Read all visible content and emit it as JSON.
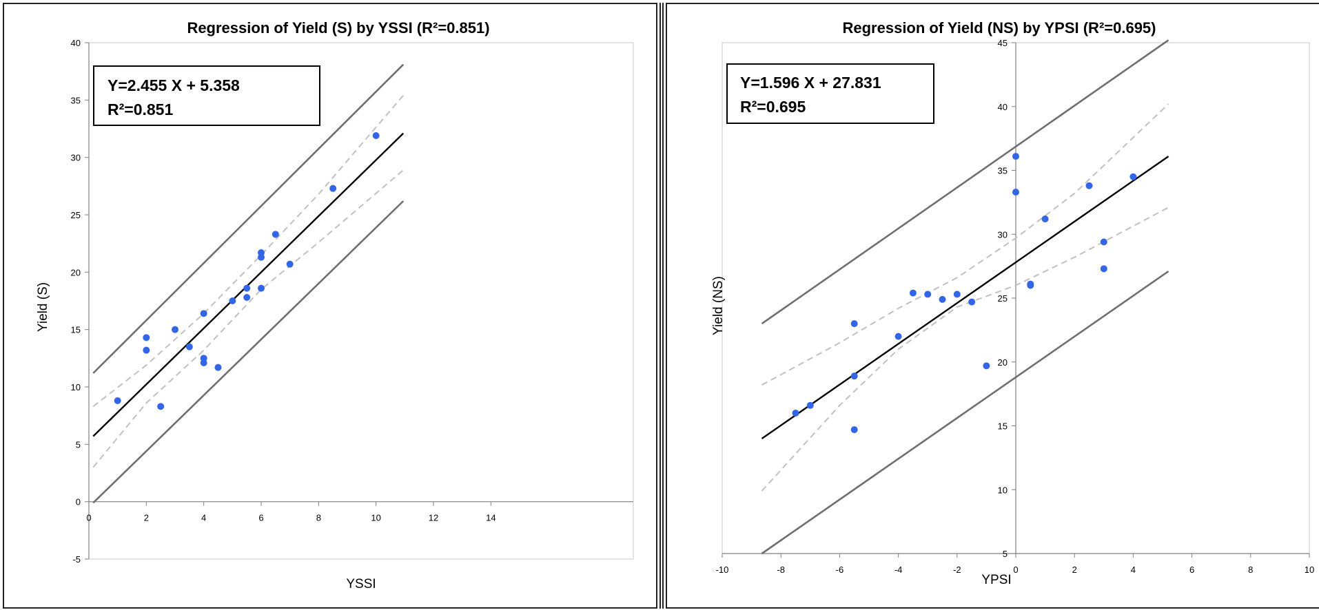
{
  "chart_data": [
    {
      "type": "scatter",
      "title": "Regression of Yield (S) by YSSI (R²=0.851)",
      "xlabel": "YSSI",
      "ylabel": "Yield (S)",
      "xlim": [
        0,
        15
      ],
      "ylim": [
        -5,
        40
      ],
      "xticks": [
        "0",
        "2",
        "4",
        "6",
        "8",
        "10",
        "12",
        "14"
      ],
      "yticks": [
        "-5",
        "0",
        "5",
        "10",
        "15",
        "20",
        "25",
        "30",
        "35",
        "40"
      ],
      "equation": "Y=2.455 X + 5.358",
      "r2_label": "R²=0.851",
      "points": [
        [
          1.0,
          8.8
        ],
        [
          2.0,
          14.3
        ],
        [
          2.0,
          13.2
        ],
        [
          2.5,
          8.3
        ],
        [
          3.0,
          15.0
        ],
        [
          3.5,
          13.5
        ],
        [
          4.0,
          16.4
        ],
        [
          4.0,
          12.5
        ],
        [
          4.0,
          12.1
        ],
        [
          4.5,
          11.7
        ],
        [
          5.0,
          17.5
        ],
        [
          5.5,
          18.6
        ],
        [
          5.5,
          17.8
        ],
        [
          6.0,
          21.7
        ],
        [
          6.0,
          21.3
        ],
        [
          6.0,
          18.6
        ],
        [
          6.5,
          23.3
        ],
        [
          7.0,
          20.7
        ],
        [
          8.5,
          27.3
        ],
        [
          10.0,
          31.9
        ]
      ],
      "fit_line": {
        "x": [
          0.15,
          10.95
        ],
        "y": [
          5.7,
          32.1
        ]
      },
      "conf_upper": {
        "x": [
          0.15,
          2,
          4,
          6,
          8,
          10.95
        ],
        "y": [
          8.3,
          11.9,
          16.4,
          21.5,
          26.8,
          35.4
        ]
      },
      "conf_lower": {
        "x": [
          0.15,
          2,
          4,
          6,
          8,
          10.95
        ],
        "y": [
          3.0,
          8.6,
          13.2,
          18.5,
          22.6,
          28.9
        ]
      },
      "pred_upper": {
        "x": [
          0.15,
          10.95
        ],
        "y": [
          11.2,
          38.1
        ]
      },
      "pred_lower": {
        "x": [
          0.15,
          10.95
        ],
        "y": [
          -0.1,
          26.2
        ]
      },
      "grid": false,
      "legend": "none",
      "colors": {
        "points": "#3366e6",
        "fit": "#000000",
        "prediction": "#6e6e6e",
        "confidence": "#c0c0c0",
        "plot_border": "#c8c8c8",
        "axis": "#7f7f7f"
      }
    },
    {
      "type": "scatter",
      "title": "Regression of Yield (NS) by YPSI (R²=0.695)",
      "xlabel": "YPSI",
      "ylabel": "Yield (NS)",
      "xlim": [
        -10,
        10
      ],
      "ylim": [
        5,
        45
      ],
      "xticks": [
        "-10",
        "-8",
        "-6",
        "-4",
        "-2",
        "0",
        "2",
        "4",
        "6",
        "8",
        "10"
      ],
      "yticks": [
        "5",
        "10",
        "15",
        "20",
        "25",
        "30",
        "35",
        "40",
        "45"
      ],
      "equation": "Y=1.596 X  +  27.831",
      "r2_label": "R²=0.695",
      "points": [
        [
          -7.5,
          16.0
        ],
        [
          -7.0,
          16.6
        ],
        [
          -5.5,
          23.0
        ],
        [
          -5.5,
          18.9
        ],
        [
          -5.5,
          14.7
        ],
        [
          -4.0,
          22.0
        ],
        [
          -3.5,
          25.4
        ],
        [
          -3.0,
          25.3
        ],
        [
          -2.5,
          24.9
        ],
        [
          -2.0,
          25.3
        ],
        [
          -1.5,
          24.7
        ],
        [
          -1.0,
          19.7
        ],
        [
          0.0,
          36.1
        ],
        [
          0.0,
          33.3
        ],
        [
          0.5,
          26.1
        ],
        [
          0.5,
          26.0
        ],
        [
          1.0,
          31.2
        ],
        [
          2.5,
          33.8
        ],
        [
          3.0,
          29.4
        ],
        [
          3.0,
          27.3
        ],
        [
          4.0,
          34.5
        ]
      ],
      "fit_line": {
        "x": [
          -8.65,
          5.2
        ],
        "y": [
          14.0,
          36.1
        ]
      },
      "conf_upper": {
        "x": [
          -8.65,
          -6,
          -4,
          -2,
          0,
          2,
          5.2
        ],
        "y": [
          18.2,
          21.5,
          24.2,
          26.6,
          29.7,
          33.2,
          40.2
        ]
      },
      "conf_lower": {
        "x": [
          -8.65,
          -6,
          -4,
          -2,
          0,
          2,
          5.2
        ],
        "y": [
          9.9,
          16.6,
          21.0,
          24.3,
          26.0,
          28.2,
          32.1
        ]
      },
      "pred_upper": {
        "x": [
          -8.65,
          5.2
        ],
        "y": [
          23.0,
          45.2
        ]
      },
      "pred_lower": {
        "x": [
          -8.65,
          5.2
        ],
        "y": [
          5.0,
          27.1
        ]
      },
      "grid": false,
      "legend": "none",
      "colors": {
        "points": "#3366e6",
        "fit": "#000000",
        "prediction": "#6e6e6e",
        "confidence": "#c0c0c0",
        "plot_border": "#c8c8c8",
        "axis": "#7f7f7f"
      }
    }
  ]
}
